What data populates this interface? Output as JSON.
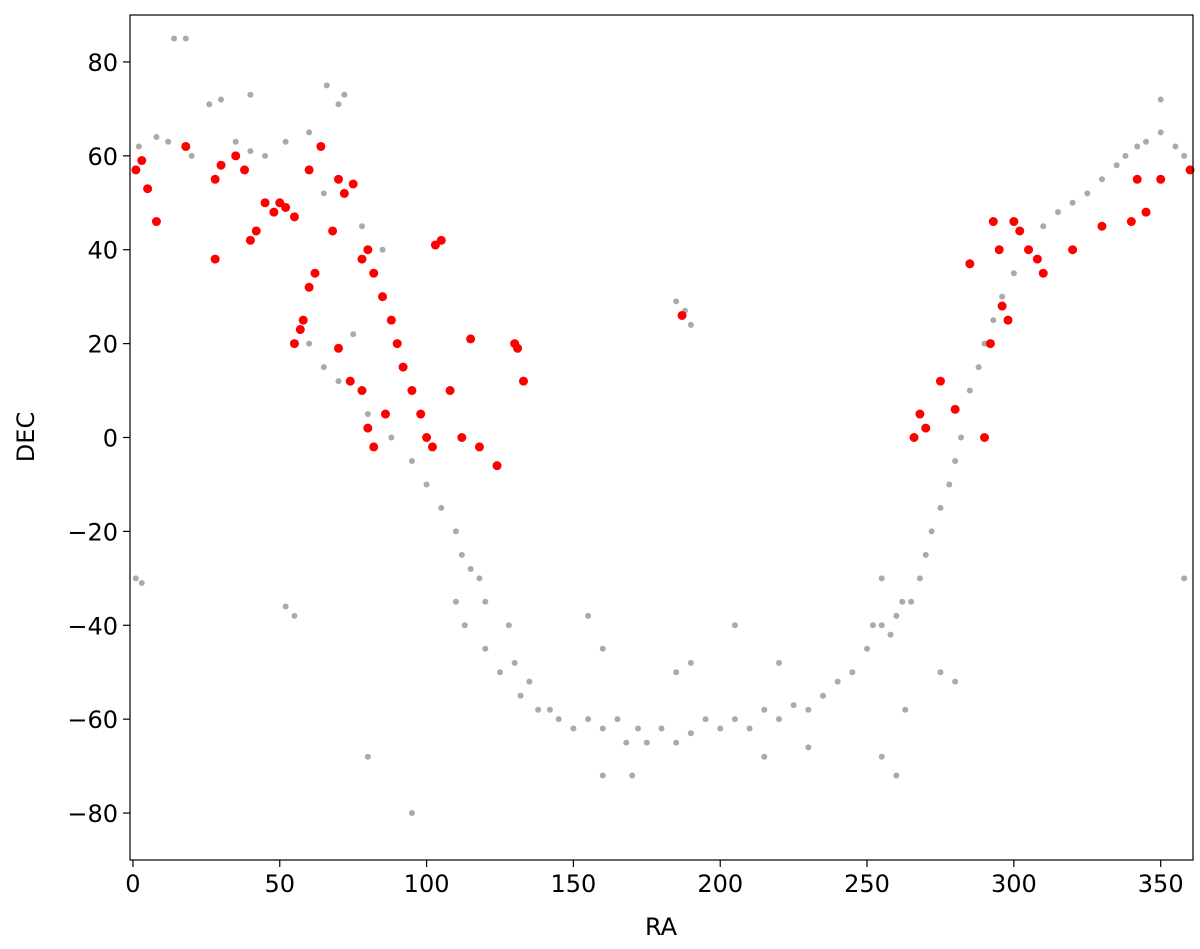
{
  "chart_data": {
    "type": "scatter",
    "xlabel": "RA",
    "ylabel": "DEC",
    "xlim": [
      -1,
      361
    ],
    "ylim": [
      -90,
      90
    ],
    "xticks": [
      0,
      50,
      100,
      150,
      200,
      250,
      300,
      350
    ],
    "yticks": [
      {
        "value": -80,
        "label": "−80"
      },
      {
        "value": -60,
        "label": "−60"
      },
      {
        "value": -40,
        "label": "−40"
      },
      {
        "value": -20,
        "label": "−20"
      },
      0,
      20,
      40,
      60,
      80
    ],
    "series": [
      {
        "color": "#aaaaaa",
        "x": [
          2,
          8,
          14,
          18,
          12,
          20,
          26,
          30,
          35,
          40,
          45,
          52,
          60,
          66,
          70,
          72,
          65,
          78,
          85,
          60,
          65,
          70,
          75,
          80,
          88,
          95,
          100,
          105,
          110,
          112,
          115,
          118,
          120,
          110,
          113,
          120,
          125,
          128,
          130,
          132,
          135,
          138,
          142,
          145,
          150,
          155,
          160,
          165,
          168,
          172,
          175,
          180,
          185,
          190,
          195,
          200,
          205,
          210,
          215,
          220,
          225,
          230,
          235,
          240,
          245,
          250,
          252,
          255,
          258,
          260,
          262,
          265,
          268,
          270,
          272,
          275,
          278,
          280,
          282,
          285,
          288,
          290,
          293,
          296,
          300,
          305,
          310,
          315,
          320,
          325,
          330,
          335,
          338,
          342,
          345,
          350,
          355,
          358,
          350,
          1,
          3,
          358,
          52,
          55,
          80,
          95,
          185,
          190,
          160,
          155,
          205,
          220,
          215,
          230,
          255,
          260,
          160,
          170,
          188,
          190,
          185,
          40,
          275,
          280,
          263,
          255
        ],
        "y": [
          62,
          64,
          85,
          85,
          63,
          60,
          71,
          72,
          63,
          61,
          60,
          63,
          65,
          75,
          71,
          73,
          52,
          45,
          40,
          20,
          15,
          12,
          22,
          5,
          0,
          -5,
          -10,
          -15,
          -20,
          -25,
          -28,
          -30,
          -35,
          -35,
          -40,
          -45,
          -50,
          -40,
          -48,
          -55,
          -52,
          -58,
          -58,
          -60,
          -62,
          -60,
          -62,
          -60,
          -65,
          -62,
          -65,
          -62,
          -65,
          -63,
          -60,
          -62,
          -60,
          -62,
          -58,
          -60,
          -57,
          -58,
          -55,
          -52,
          -50,
          -45,
          -40,
          -40,
          -42,
          -38,
          -35,
          -35,
          -30,
          -25,
          -20,
          -15,
          -10,
          -5,
          0,
          10,
          15,
          20,
          25,
          30,
          35,
          40,
          45,
          48,
          50,
          52,
          55,
          58,
          60,
          62,
          63,
          65,
          62,
          60,
          72,
          -30,
          -31,
          -30,
          -36,
          -38,
          -68,
          -80,
          -50,
          -48,
          -45,
          -38,
          -40,
          -48,
          -68,
          -66,
          -68,
          -72,
          -72,
          -72,
          27,
          24,
          29,
          73,
          -50,
          -52,
          -58,
          -30
        ]
      },
      {
        "color": "#ff0000",
        "x": [
          1,
          3,
          8,
          18,
          28,
          30,
          35,
          38,
          40,
          42,
          45,
          48,
          50,
          52,
          55,
          57,
          55,
          58,
          60,
          62,
          64,
          68,
          70,
          72,
          75,
          78,
          80,
          82,
          85,
          70,
          74,
          78,
          80,
          82,
          86,
          88,
          90,
          92,
          95,
          98,
          100,
          102,
          105,
          103,
          108,
          112,
          115,
          118,
          124,
          130,
          131,
          133,
          60,
          28,
          5,
          187,
          268,
          270,
          266,
          275,
          280,
          290,
          293,
          295,
          300,
          302,
          305,
          308,
          296,
          298,
          310,
          320,
          330,
          340,
          342,
          345,
          350,
          360,
          285,
          292
        ],
        "y": [
          57,
          59,
          46,
          62,
          38,
          58,
          60,
          57,
          42,
          44,
          50,
          48,
          50,
          49,
          47,
          23,
          20,
          25,
          32,
          35,
          62,
          44,
          55,
          52,
          54,
          38,
          40,
          35,
          30,
          19,
          12,
          10,
          2,
          -2,
          5,
          25,
          20,
          15,
          10,
          5,
          0,
          -2,
          42,
          41,
          10,
          0,
          21,
          -2,
          -6,
          20,
          19,
          12,
          57,
          55,
          53,
          26,
          5,
          2,
          0,
          12,
          6,
          0,
          46,
          40,
          46,
          44,
          40,
          38,
          28,
          25,
          35,
          40,
          45,
          46,
          55,
          48,
          55,
          57,
          37,
          20
        ]
      }
    ]
  }
}
